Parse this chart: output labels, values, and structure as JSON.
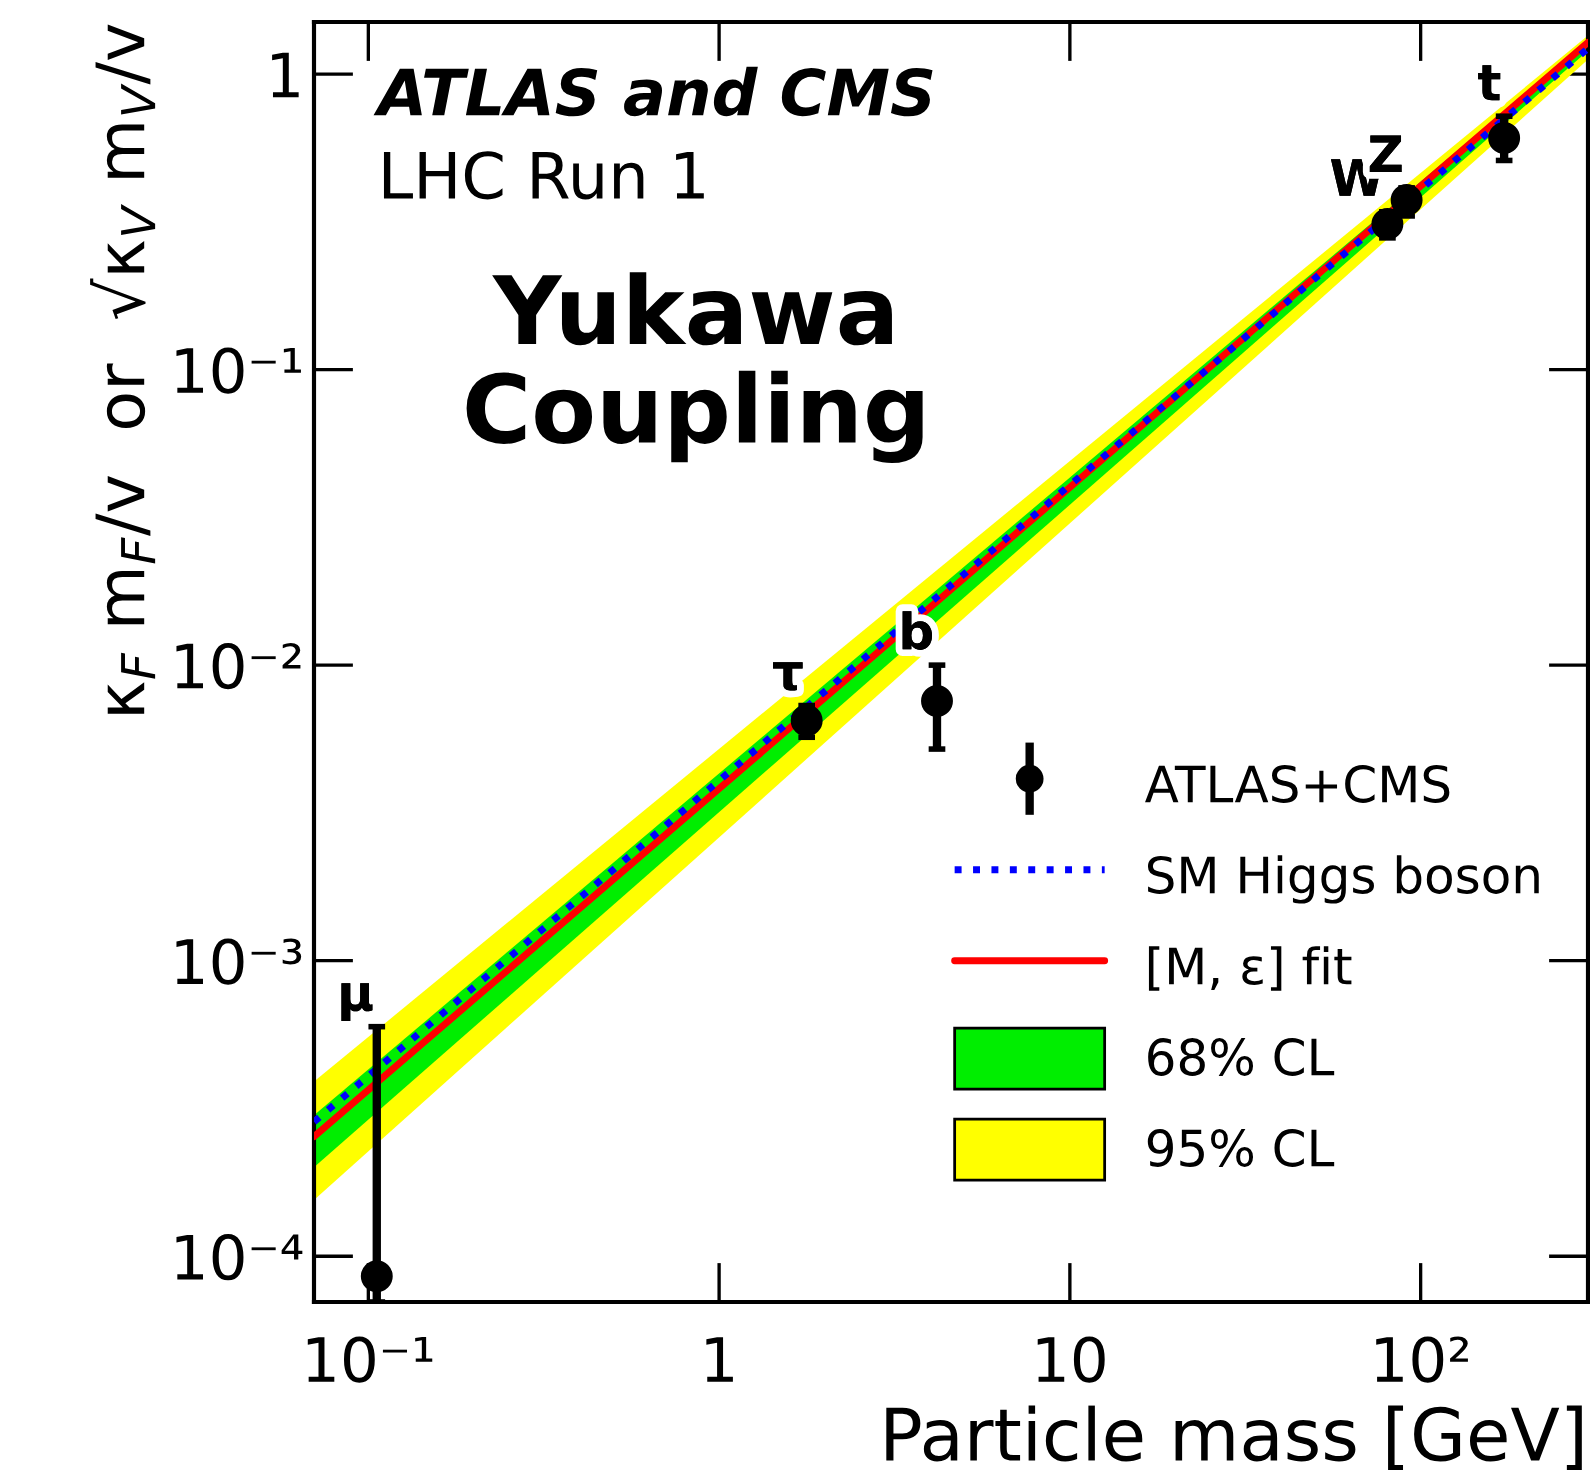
{
  "chart_data": {
    "type": "scatter",
    "title": "Yukawa\nCoupling",
    "xlabel": "Particle mass [GeV]",
    "ylabel": "κ$_{F}$ m$_{F}$/v  or  √κ$_{V}$ m$_{V}$/v",
    "log": "xy",
    "xlim": [
      0.07,
      300
    ],
    "ylim": [
      7e-05,
      1.5
    ],
    "xticks": [
      {
        "value": 0.1,
        "label": "10⁻¹"
      },
      1,
      10,
      {
        "value": 100,
        "label": "10²"
      }
    ],
    "yticks": [
      {
        "value": 0.0001,
        "label": "10⁻⁴"
      },
      {
        "value": 0.001,
        "label": "10⁻³"
      },
      {
        "value": 0.01,
        "label": "10⁻²"
      },
      {
        "value": 0.1,
        "label": "10⁻¹"
      },
      1
    ],
    "grid": false,
    "legend": "bottom right",
    "series": [
      {
        "name": "95% CL",
        "type": "line",
        "color": "#ffff00",
        "x": [
          0.07,
          300
        ],
        "values": [
          null,
          null
        ],
        "lower": [
          0.000155,
          1.12
        ],
        "upper": [
          0.00039,
          1.35
        ]
      },
      {
        "name": "68% CL",
        "type": "line",
        "color": "#00ee00",
        "x": [
          0.07,
          300
        ],
        "values": [
          null,
          null
        ],
        "lower": [
          0.0002,
          1.2
        ],
        "upper": [
          0.0003,
          1.3
        ]
      },
      {
        "name": "[M, ε] fit",
        "type": "line",
        "line_style": "solid",
        "color": "#ff0000",
        "x": [
          0.07,
          300
        ],
        "values": [
          0.000254,
          1.28
        ]
      },
      {
        "name": "SM Higgs boson",
        "type": "line",
        "line_style": "dotted",
        "color": "#0000ff",
        "x": [
          0.07,
          300
        ],
        "values": [
          0.000285,
          1.22
        ]
      },
      {
        "name": "ATLAS+CMS",
        "marker": "circle",
        "color": "#000000",
        "x": [
          0.1057,
          1.777,
          4.18,
          80.4,
          91.2,
          173
        ],
        "values": [
          8.56e-05,
          0.0065,
          0.00756,
          0.311,
          0.375,
          0.608
        ],
        "errors": [
          [
            7e-05,
            0.000598
          ],
          [
            0.0057,
            0.0073
          ],
          [
            0.0052,
            0.01
          ],
          [
            0.279,
            0.342
          ],
          [
            0.331,
            0.412
          ],
          [
            0.51,
            0.72
          ]
        ]
      }
    ],
    "annotations": [
      "ATLAS and CMS",
      "LHC Run 1",
      {
        "text": "μ",
        "x": 0.1057,
        "y": 0.000598
      },
      {
        "text": "τ",
        "x": 1.777,
        "y": 0.0073
      },
      {
        "text": "b",
        "x": 4.18,
        "y": 0.01
      },
      {
        "text": "W",
        "x": 80.4,
        "y": 0.342
      },
      {
        "text": "Z",
        "x": 91.2,
        "y": 0.412
      },
      {
        "text": "t",
        "x": 173,
        "y": 0.72
      }
    ]
  }
}
